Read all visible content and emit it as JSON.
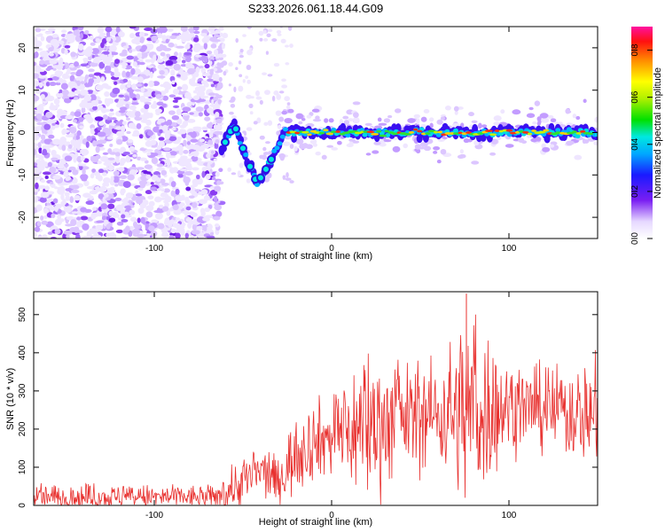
{
  "title": "S233.2026.061.18.44.G09",
  "colors": {
    "snr_line": "#e8302e",
    "scatter": "#7d3cf0"
  },
  "chart_data": [
    {
      "type": "heatmap",
      "xlabel": "Height of straight line (km)",
      "ylabel": "Frequency (Hz)",
      "xlim": [
        -168,
        150
      ],
      "ylim": [
        -25,
        25
      ],
      "x_ticks": [
        -100,
        0,
        100
      ],
      "y_ticks": [
        -20,
        -10,
        0,
        10,
        20
      ],
      "colorbar": {
        "label": "Normalized spectral amplitude",
        "range": [
          0.0,
          0.9
        ],
        "ticks": [
          0.0,
          0.2,
          0.4,
          0.6,
          0.8
        ]
      },
      "ridge": {
        "description_points_km": [
          -62,
          -55,
          -48,
          -42,
          -36,
          -30,
          -26,
          0,
          50,
          100,
          150
        ],
        "frequency_hz": [
          -4,
          2,
          -6,
          -12,
          -8,
          -3,
          0,
          0,
          0,
          0,
          0
        ]
      }
    },
    {
      "type": "line",
      "xlabel": "Height of straight line (km)",
      "ylabel": "SNR (10 * v/v)",
      "xlim": [
        -168,
        150
      ],
      "ylim": [
        0,
        560
      ],
      "x_ticks": [
        -100,
        0,
        100
      ],
      "y_ticks": [
        0,
        100,
        200,
        300,
        400,
        500
      ],
      "trend": {
        "x_km": [
          -168,
          -65,
          -50,
          -40,
          -30,
          -20,
          -10,
          0,
          20,
          40,
          60,
          80,
          100,
          120,
          150
        ],
        "snr_mean": [
          20,
          22,
          60,
          90,
          60,
          140,
          170,
          180,
          210,
          230,
          240,
          250,
          260,
          250,
          240
        ],
        "snr_peak": [
          60,
          55,
          150,
          160,
          130,
          260,
          280,
          300,
          440,
          380,
          390,
          555,
          380,
          370,
          390
        ]
      }
    }
  ]
}
